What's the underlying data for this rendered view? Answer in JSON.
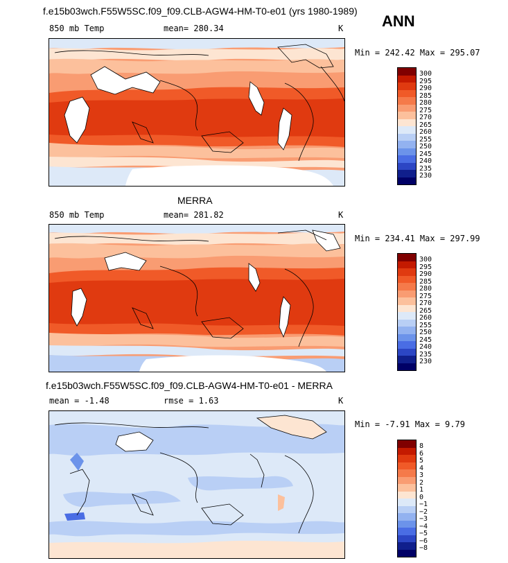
{
  "header": {
    "ann_label": "ANN"
  },
  "panels": [
    {
      "title": "f.e15b03wch.F55W5SC.f09_f09.CLB-AGW4-HM-T0-e01 (yrs 1980-1989)",
      "left_label": "850 mb Temp",
      "center_label": "mean= 280.34",
      "units": "K",
      "minmax": "Min = 242.42 Max = 295.07"
    },
    {
      "title": "MERRA",
      "left_label": "850 mb Temp",
      "center_label": "mean= 281.82",
      "units": "K",
      "minmax": "Min = 234.41 Max = 297.99"
    },
    {
      "title": "f.e15b03wch.F55W5SC.f09_f09.CLB-AGW4-HM-T0-e01 - MERRA",
      "left_label": "mean =  -1.48",
      "center_label": "rmse =   1.63",
      "units": "K",
      "minmax": "Min =  -7.91 Max =   9.79"
    }
  ],
  "chart_data": [
    {
      "type": "heatmap",
      "title": "f.e15b03wch.F55W5SC.f09_f09.CLB-AGW4-HM-T0-e01 (yrs 1980-1989)",
      "variable": "850 mb Temp",
      "units": "K",
      "mean": 280.34,
      "min": 242.42,
      "max": 295.07,
      "colorbar_levels": [
        "300",
        "295",
        "290",
        "285",
        "280",
        "275",
        "270",
        "265",
        "260",
        "255",
        "250",
        "245",
        "240",
        "235",
        "230"
      ],
      "colorbar_colors": [
        "#800000",
        "#c41a00",
        "#e03a10",
        "#f05a28",
        "#f57a4a",
        "#f99c72",
        "#fcc09c",
        "#fde5d2",
        "#dde9f8",
        "#b9cff5",
        "#93b2f0",
        "#6c93ea",
        "#4a6de4",
        "#2c46c4",
        "#101f8c",
        "#000066"
      ]
    },
    {
      "type": "heatmap",
      "title": "MERRA",
      "variable": "850 mb Temp",
      "units": "K",
      "mean": 281.82,
      "min": 234.41,
      "max": 297.99,
      "colorbar_levels": [
        "300",
        "295",
        "290",
        "285",
        "280",
        "275",
        "270",
        "265",
        "260",
        "255",
        "250",
        "245",
        "240",
        "235",
        "230"
      ],
      "colorbar_colors": [
        "#800000",
        "#c41a00",
        "#e03a10",
        "#f05a28",
        "#f57a4a",
        "#f99c72",
        "#fcc09c",
        "#fde5d2",
        "#dde9f8",
        "#b9cff5",
        "#93b2f0",
        "#6c93ea",
        "#4a6de4",
        "#2c46c4",
        "#101f8c",
        "#000066"
      ]
    },
    {
      "type": "heatmap",
      "title": "f.e15b03wch.F55W5SC.f09_f09.CLB-AGW4-HM-T0-e01 - MERRA",
      "units": "K",
      "mean": -1.48,
      "rmse": 1.63,
      "min": -7.91,
      "max": 9.79,
      "colorbar_levels": [
        "8",
        "6",
        "5",
        "4",
        "3",
        "2",
        "1",
        "0",
        "−1",
        "−2",
        "−3",
        "−4",
        "−5",
        "−6",
        "−8"
      ],
      "colorbar_colors": [
        "#800000",
        "#c41a00",
        "#e03a10",
        "#f05a28",
        "#f57a4a",
        "#f99c72",
        "#fcc09c",
        "#fde5d2",
        "#dde9f8",
        "#b9cff5",
        "#93b2f0",
        "#6c93ea",
        "#4a6de4",
        "#2c46c4",
        "#101f8c",
        "#000066"
      ]
    }
  ]
}
